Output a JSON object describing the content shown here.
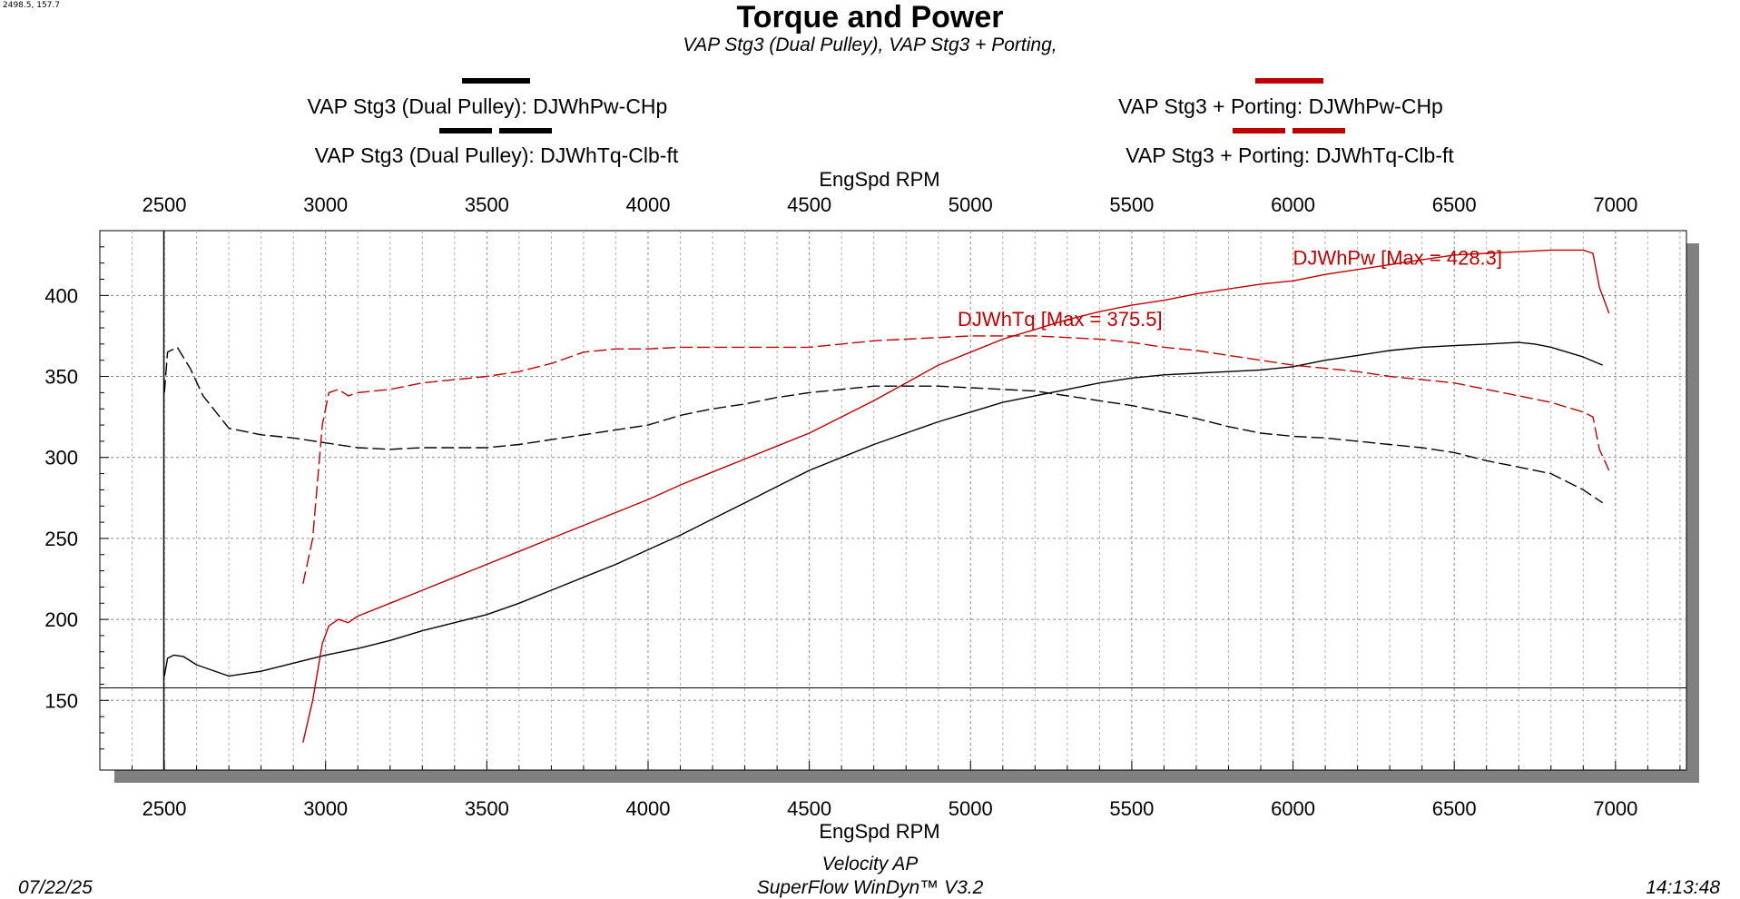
{
  "corner_readout": "2498.5, 157.7",
  "title": "Torque and Power",
  "subtitle": "VAP Stg3 (Dual Pulley), VAP Stg3 + Porting,",
  "legend": [
    {
      "label": "VAP Stg3 (Dual Pulley): DJWhPw-CHp",
      "color": "#000000",
      "dash": "solid"
    },
    {
      "label": "VAP Stg3 (Dual Pulley): DJWhTq-Clb-ft",
      "color": "#000000",
      "dash": "dashed"
    },
    {
      "label": "VAP Stg3 + Porting: DJWhPw-CHp",
      "color": "#c00000",
      "dash": "solid"
    },
    {
      "label": "VAP Stg3 + Porting: DJWhTq-Clb-ft",
      "color": "#c00000",
      "dash": "dashed"
    }
  ],
  "footer": {
    "date": "07/22/25",
    "shop": "Velocity AP",
    "software": "SuperFlow WinDyn™ V3.2",
    "time": "14:13:48"
  },
  "colors": {
    "black_series": "#000000",
    "red_series": "#c00000",
    "grid": "#9a9a9a",
    "shadow": "#808080"
  },
  "chart_data": {
    "type": "line",
    "title": "Torque and Power",
    "subtitle": "VAP Stg3 (Dual Pulley), VAP Stg3 + Porting,",
    "xlabel": "EngSpd RPM",
    "ylabel": "",
    "xlim": [
      2300,
      7220
    ],
    "ylim": [
      107,
      440
    ],
    "x_ticks": [
      2500,
      3000,
      3500,
      4000,
      4500,
      5000,
      5500,
      6000,
      6500,
      7000
    ],
    "y_ticks": [
      150,
      200,
      250,
      300,
      350,
      400
    ],
    "grid": true,
    "cursor": {
      "x": 2498.5,
      "y": 157.7
    },
    "annotations": [
      {
        "text": "DJWhPw [Max = 428.3]",
        "x": 6000,
        "y": 419,
        "color": "#c00000"
      },
      {
        "text": "DJWhTq [Max = 375.5]",
        "x": 4960,
        "y": 381,
        "color": "#c00000"
      }
    ],
    "series": [
      {
        "name": "VAP Stg3 (Dual Pulley): DJWhPw-CHp",
        "color": "#000000",
        "dash": "solid",
        "x": [
          2500,
          2510,
          2530,
          2560,
          2600,
          2700,
          2800,
          2900,
          3000,
          3100,
          3200,
          3300,
          3400,
          3500,
          3600,
          3700,
          3800,
          3900,
          4000,
          4100,
          4200,
          4300,
          4400,
          4500,
          4600,
          4700,
          4800,
          4900,
          5000,
          5100,
          5200,
          5300,
          5400,
          5500,
          5600,
          5700,
          5800,
          5900,
          6000,
          6100,
          6200,
          6300,
          6400,
          6500,
          6600,
          6700,
          6750,
          6800,
          6900,
          6960
        ],
        "y": [
          165,
          176,
          178,
          177,
          172,
          165,
          168,
          173,
          178,
          182,
          187,
          193,
          198,
          203,
          210,
          218,
          226,
          234,
          243,
          252,
          262,
          272,
          282,
          292,
          300,
          308,
          315,
          322,
          328,
          334,
          338,
          342,
          346,
          349,
          351,
          352,
          353,
          354,
          356,
          360,
          363,
          366,
          368,
          369,
          370,
          371,
          370,
          368,
          362,
          357
        ]
      },
      {
        "name": "VAP Stg3 (Dual Pulley): DJWhTq-Clb-ft",
        "color": "#000000",
        "dash": "dashed",
        "x": [
          2500,
          2510,
          2540,
          2580,
          2620,
          2700,
          2800,
          2900,
          3000,
          3100,
          3200,
          3300,
          3400,
          3500,
          3600,
          3700,
          3800,
          3900,
          4000,
          4100,
          4200,
          4300,
          4400,
          4500,
          4600,
          4700,
          4800,
          4900,
          5000,
          5100,
          5200,
          5300,
          5400,
          5500,
          5600,
          5700,
          5800,
          5900,
          6000,
          6100,
          6200,
          6300,
          6400,
          6500,
          6600,
          6700,
          6800,
          6900,
          6960
        ],
        "y": [
          340,
          365,
          368,
          355,
          338,
          318,
          314,
          312,
          309,
          306,
          305,
          306,
          306,
          306,
          308,
          311,
          314,
          317,
          320,
          326,
          330,
          333,
          337,
          340,
          342,
          344,
          344,
          344,
          343,
          342,
          341,
          338,
          335,
          332,
          328,
          324,
          319,
          315,
          313,
          312,
          310,
          308,
          306,
          303,
          298,
          294,
          290,
          280,
          272
        ]
      },
      {
        "name": "VAP Stg3 + Porting: DJWhPw-CHp",
        "color": "#c00000",
        "dash": "solid",
        "x": [
          2930,
          2960,
          2990,
          3010,
          3040,
          3070,
          3100,
          3200,
          3300,
          3400,
          3500,
          3600,
          3700,
          3800,
          3900,
          4000,
          4100,
          4200,
          4300,
          4400,
          4500,
          4600,
          4700,
          4800,
          4900,
          5000,
          5100,
          5200,
          5300,
          5400,
          5500,
          5600,
          5700,
          5800,
          5900,
          6000,
          6100,
          6200,
          6300,
          6400,
          6500,
          6600,
          6700,
          6800,
          6900,
          6930,
          6950,
          6980
        ],
        "y": [
          124,
          150,
          185,
          196,
          200,
          198,
          202,
          210,
          218,
          226,
          234,
          242,
          250,
          258,
          266,
          274,
          283,
          291,
          299,
          307,
          315,
          325,
          335,
          346,
          357,
          365,
          373,
          379,
          385,
          390,
          394,
          397,
          401,
          404,
          407,
          409,
          413,
          416,
          419,
          422,
          425,
          426,
          427,
          428,
          428,
          426,
          405,
          389
        ]
      },
      {
        "name": "VAP Stg3 + Porting: DJWhTq-Clb-ft",
        "color": "#c00000",
        "dash": "dashed",
        "x": [
          2930,
          2960,
          2990,
          3010,
          3040,
          3070,
          3100,
          3200,
          3300,
          3400,
          3500,
          3600,
          3700,
          3800,
          3900,
          4000,
          4100,
          4200,
          4300,
          4400,
          4500,
          4600,
          4700,
          4800,
          4900,
          5000,
          5100,
          5200,
          5300,
          5400,
          5500,
          5600,
          5700,
          5800,
          5900,
          6000,
          6100,
          6200,
          6300,
          6400,
          6500,
          6600,
          6700,
          6800,
          6900,
          6930,
          6950,
          6980
        ],
        "y": [
          222,
          250,
          320,
          340,
          342,
          338,
          340,
          342,
          346,
          348,
          350,
          353,
          358,
          365,
          367,
          367,
          368,
          368,
          368,
          368,
          368,
          370,
          372,
          373,
          374,
          375,
          375,
          375,
          374,
          373,
          371,
          368,
          366,
          363,
          360,
          357,
          355,
          353,
          350,
          348,
          346,
          342,
          338,
          334,
          328,
          325,
          305,
          292
        ]
      }
    ]
  }
}
